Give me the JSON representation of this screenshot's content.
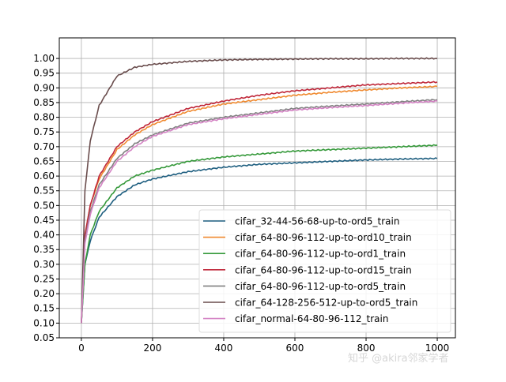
{
  "chart_data": {
    "type": "line",
    "title": "",
    "xlabel": "",
    "ylabel": "",
    "xlim": [
      -62,
      1051
    ],
    "ylim": [
      0.05,
      1.07
    ],
    "grid": true,
    "legend_position": "lower-right",
    "x_ticks": [
      0,
      200,
      400,
      600,
      800,
      1000
    ],
    "y_ticks": [
      "0.05",
      "0.10",
      "0.15",
      "0.20",
      "0.25",
      "0.30",
      "0.35",
      "0.40",
      "0.45",
      "0.50",
      "0.55",
      "0.60",
      "0.65",
      "0.70",
      "0.75",
      "0.80",
      "0.85",
      "0.90",
      "0.95",
      "1.00"
    ],
    "x": [
      0,
      10,
      25,
      50,
      100,
      150,
      200,
      300,
      400,
      500,
      600,
      700,
      800,
      900,
      1000
    ],
    "series": [
      {
        "name": "cifar_32-44-56-68-up-to-ord5_train",
        "color": "#1f5f80",
        "values": [
          0.1,
          0.3,
          0.38,
          0.46,
          0.53,
          0.57,
          0.59,
          0.615,
          0.63,
          0.64,
          0.645,
          0.65,
          0.655,
          0.658,
          0.66
        ]
      },
      {
        "name": "cifar_64-80-96-112-up-to-ord10_train",
        "color": "#f08a30",
        "values": [
          0.1,
          0.4,
          0.5,
          0.59,
          0.69,
          0.74,
          0.775,
          0.82,
          0.845,
          0.86,
          0.875,
          0.885,
          0.893,
          0.9,
          0.905
        ]
      },
      {
        "name": "cifar_64-80-96-112-up-to-ord1_train",
        "color": "#35993a",
        "values": [
          0.1,
          0.3,
          0.4,
          0.48,
          0.56,
          0.6,
          0.62,
          0.65,
          0.665,
          0.675,
          0.685,
          0.69,
          0.695,
          0.7,
          0.705
        ]
      },
      {
        "name": "cifar_64-80-96-112-up-to-ord15_train",
        "color": "#c0283a",
        "values": [
          0.1,
          0.4,
          0.5,
          0.6,
          0.7,
          0.75,
          0.785,
          0.83,
          0.855,
          0.875,
          0.89,
          0.9,
          0.91,
          0.915,
          0.92
        ]
      },
      {
        "name": "cifar_64-80-96-112-up-to-ord5_train",
        "color": "#808080",
        "values": [
          0.1,
          0.38,
          0.48,
          0.57,
          0.66,
          0.71,
          0.74,
          0.78,
          0.8,
          0.815,
          0.83,
          0.838,
          0.845,
          0.853,
          0.86
        ]
      },
      {
        "name": "cifar_64-128-256-512-up-to-ord5_train",
        "color": "#6a4d4d",
        "values": [
          0.1,
          0.55,
          0.72,
          0.84,
          0.94,
          0.97,
          0.98,
          0.99,
          0.995,
          0.997,
          0.998,
          0.999,
          0.999,
          1.0,
          1.0
        ]
      },
      {
        "name": "cifar_normal-64-80-96-112_train",
        "color": "#d483c4",
        "values": [
          0.1,
          0.37,
          0.47,
          0.56,
          0.65,
          0.7,
          0.735,
          0.775,
          0.795,
          0.81,
          0.825,
          0.833,
          0.84,
          0.848,
          0.855
        ]
      }
    ]
  },
  "watermark": "知乎 @akira邻家学者"
}
